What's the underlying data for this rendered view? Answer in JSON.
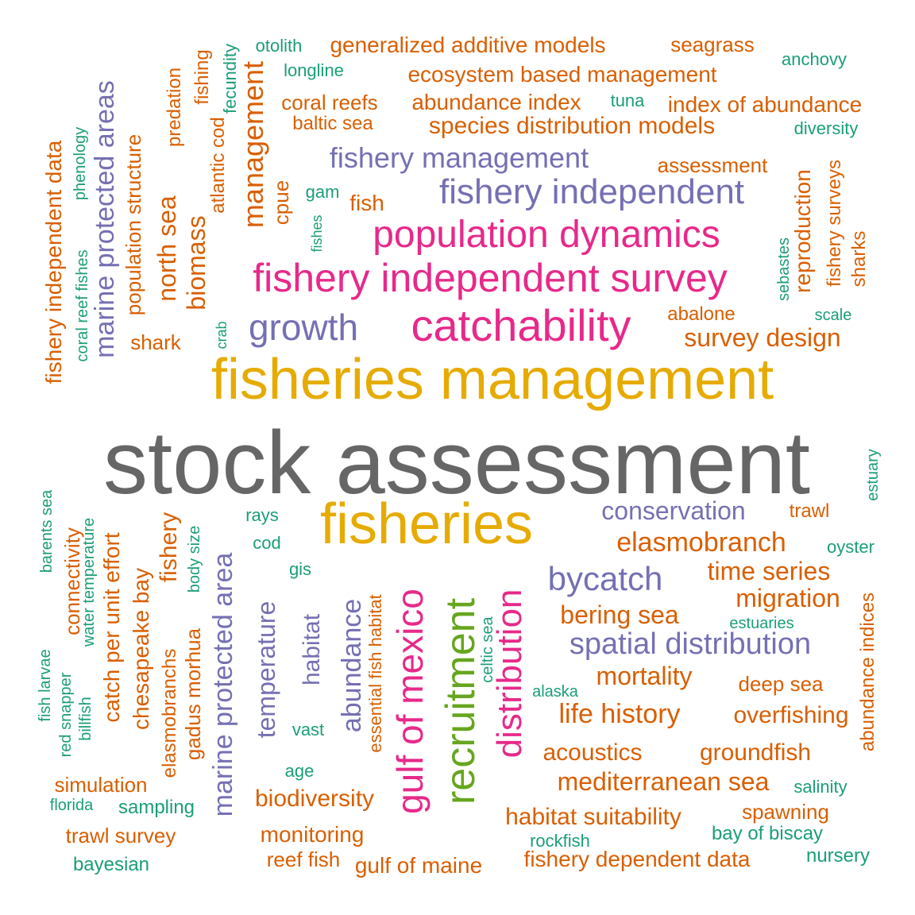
{
  "palette": {
    "gray": "#666666",
    "gold": "#E6AB02",
    "magenta": "#E7298A",
    "purple": "#7570B3",
    "green": "#66A61E",
    "orange": "#D95F02",
    "teal": "#1B9E77"
  },
  "words": [
    {
      "text": "stock assessment",
      "color": "gray"
    },
    {
      "text": "fisheries management",
      "color": "gold"
    },
    {
      "text": "fisheries",
      "color": "gold"
    },
    {
      "text": "catchability",
      "color": "magenta"
    },
    {
      "text": "fishery independent survey",
      "color": "magenta"
    },
    {
      "text": "population dynamics",
      "color": "magenta"
    },
    {
      "text": "gulf of mexico",
      "color": "magenta"
    },
    {
      "text": "distribution",
      "color": "magenta"
    },
    {
      "text": "recruitment",
      "color": "green"
    },
    {
      "text": "growth",
      "color": "purple"
    },
    {
      "text": "fishery independent",
      "color": "purple"
    },
    {
      "text": "fishery management",
      "color": "purple"
    },
    {
      "text": "marine protected areas",
      "color": "purple"
    },
    {
      "text": "marine protected area",
      "color": "purple"
    },
    {
      "text": "bycatch",
      "color": "purple"
    },
    {
      "text": "spatial distribution",
      "color": "purple"
    },
    {
      "text": "conservation",
      "color": "purple"
    },
    {
      "text": "abundance",
      "color": "purple"
    },
    {
      "text": "temperature",
      "color": "purple"
    },
    {
      "text": "habitat",
      "color": "purple"
    },
    {
      "text": "generalized additive models",
      "color": "orange"
    },
    {
      "text": "ecosystem based management",
      "color": "orange"
    },
    {
      "text": "abundance index",
      "color": "orange"
    },
    {
      "text": "index of abundance",
      "color": "orange"
    },
    {
      "text": "coral reefs",
      "color": "orange"
    },
    {
      "text": "baltic sea",
      "color": "orange"
    },
    {
      "text": "species distribution models",
      "color": "orange"
    },
    {
      "text": "seagrass",
      "color": "orange"
    },
    {
      "text": "assessment",
      "color": "orange"
    },
    {
      "text": "fish",
      "color": "orange"
    },
    {
      "text": "abalone",
      "color": "orange"
    },
    {
      "text": "survey design",
      "color": "orange"
    },
    {
      "text": "shark",
      "color": "orange"
    },
    {
      "text": "elasmobranch",
      "color": "orange"
    },
    {
      "text": "time series",
      "color": "orange"
    },
    {
      "text": "migration",
      "color": "orange"
    },
    {
      "text": "bering sea",
      "color": "orange"
    },
    {
      "text": "mortality",
      "color": "orange"
    },
    {
      "text": "deep sea",
      "color": "orange"
    },
    {
      "text": "life history",
      "color": "orange"
    },
    {
      "text": "overfishing",
      "color": "orange"
    },
    {
      "text": "acoustics",
      "color": "orange"
    },
    {
      "text": "groundfish",
      "color": "orange"
    },
    {
      "text": "mediterranean sea",
      "color": "orange"
    },
    {
      "text": "biodiversity",
      "color": "orange"
    },
    {
      "text": "habitat suitability",
      "color": "orange"
    },
    {
      "text": "spawning",
      "color": "orange"
    },
    {
      "text": "monitoring",
      "color": "orange"
    },
    {
      "text": "reef fish",
      "color": "orange"
    },
    {
      "text": "gulf of maine",
      "color": "orange"
    },
    {
      "text": "fishery dependent data",
      "color": "orange"
    },
    {
      "text": "simulation",
      "color": "orange"
    },
    {
      "text": "trawl survey",
      "color": "orange"
    },
    {
      "text": "trawl",
      "color": "orange"
    },
    {
      "text": "management",
      "color": "orange"
    },
    {
      "text": "north sea",
      "color": "orange"
    },
    {
      "text": "biomass",
      "color": "orange"
    },
    {
      "text": "cpue",
      "color": "orange"
    },
    {
      "text": "fishing",
      "color": "orange"
    },
    {
      "text": "predation",
      "color": "orange"
    },
    {
      "text": "atlantic cod",
      "color": "orange"
    },
    {
      "text": "population structure",
      "color": "orange"
    },
    {
      "text": "fishery independent data",
      "color": "orange"
    },
    {
      "text": "reproduction",
      "color": "orange"
    },
    {
      "text": "fishery surveys",
      "color": "orange"
    },
    {
      "text": "sharks",
      "color": "orange"
    },
    {
      "text": "abundance indices",
      "color": "orange"
    },
    {
      "text": "catch per unit effort",
      "color": "orange"
    },
    {
      "text": "chesapeake bay",
      "color": "orange"
    },
    {
      "text": "fishery",
      "color": "orange"
    },
    {
      "text": "connectivity",
      "color": "orange"
    },
    {
      "text": "elasmobranchs",
      "color": "orange"
    },
    {
      "text": "gadus morhua",
      "color": "orange"
    },
    {
      "text": "essential fish habitat",
      "color": "orange"
    },
    {
      "text": "otolith",
      "color": "teal"
    },
    {
      "text": "longline",
      "color": "teal"
    },
    {
      "text": "anchovy",
      "color": "teal"
    },
    {
      "text": "tuna",
      "color": "teal"
    },
    {
      "text": "diversity",
      "color": "teal"
    },
    {
      "text": "fecundity",
      "color": "teal"
    },
    {
      "text": "phenology",
      "color": "teal"
    },
    {
      "text": "coral reef fishes",
      "color": "teal"
    },
    {
      "text": "gam",
      "color": "teal"
    },
    {
      "text": "fishes",
      "color": "teal"
    },
    {
      "text": "crab",
      "color": "teal"
    },
    {
      "text": "sebastes",
      "color": "teal"
    },
    {
      "text": "scale",
      "color": "teal"
    },
    {
      "text": "estuary",
      "color": "teal"
    },
    {
      "text": "oyster",
      "color": "teal"
    },
    {
      "text": "rays",
      "color": "teal"
    },
    {
      "text": "cod",
      "color": "teal"
    },
    {
      "text": "gis",
      "color": "teal"
    },
    {
      "text": "estuaries",
      "color": "teal"
    },
    {
      "text": "alaska",
      "color": "teal"
    },
    {
      "text": "vast",
      "color": "teal"
    },
    {
      "text": "age",
      "color": "teal"
    },
    {
      "text": "salinity",
      "color": "teal"
    },
    {
      "text": "rockfish",
      "color": "teal"
    },
    {
      "text": "bay of biscay",
      "color": "teal"
    },
    {
      "text": "nursery",
      "color": "teal"
    },
    {
      "text": "florida",
      "color": "teal"
    },
    {
      "text": "sampling",
      "color": "teal"
    },
    {
      "text": "bayesian",
      "color": "teal"
    },
    {
      "text": "barents sea",
      "color": "teal"
    },
    {
      "text": "water temperature",
      "color": "teal"
    },
    {
      "text": "body size",
      "color": "teal"
    },
    {
      "text": "fish larvae",
      "color": "teal"
    },
    {
      "text": "red snapper",
      "color": "teal"
    },
    {
      "text": "billfish",
      "color": "teal"
    },
    {
      "text": "celtic sea",
      "color": "teal"
    }
  ]
}
